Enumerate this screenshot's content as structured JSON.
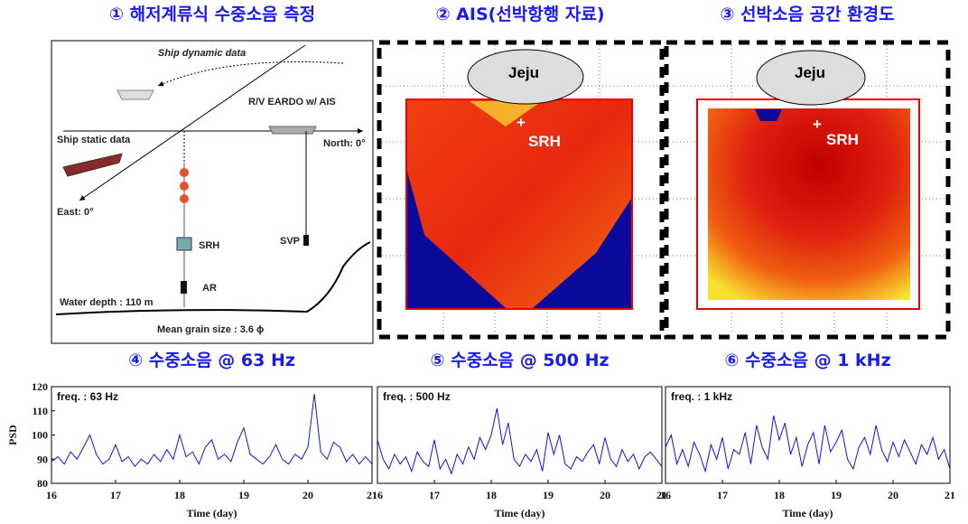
{
  "panels": [
    {
      "title": "① 해저계류식 수중소음 측정"
    },
    {
      "title": "② AIS(선박항행 자료)"
    },
    {
      "title": "③ 선박소음 공간 환경도"
    }
  ],
  "diagram": {
    "ship_dynamic": "Ship dynamic data",
    "vessel": "R/V EARDO w/ AIS",
    "ship_static": "Ship static data",
    "north": "North: 0°",
    "east": "East: 0°",
    "srh": "SRH",
    "svp": "SVP",
    "ar": "AR",
    "depth": "Water depth : 110 m",
    "grain": "Mean grain size : 3.6 ϕ"
  },
  "maps": [
    {
      "island": "Jeju",
      "site": "SRH"
    },
    {
      "island": "Jeju",
      "site": "SRH"
    }
  ],
  "chart_data": [
    {
      "type": "line",
      "title": "④ 수중소음 @ 63 Hz",
      "annotation": "freq. : 63 Hz",
      "x_label": "Time (day)",
      "y_label": "PSD",
      "x": [
        16.0,
        16.1,
        16.2,
        16.3,
        16.4,
        16.5,
        16.6,
        16.7,
        16.8,
        16.9,
        17.0,
        17.1,
        17.2,
        17.3,
        17.4,
        17.5,
        17.6,
        17.7,
        17.8,
        17.9,
        18.0,
        18.1,
        18.2,
        18.3,
        18.4,
        18.5,
        18.6,
        18.7,
        18.8,
        18.9,
        19.0,
        19.1,
        19.2,
        19.3,
        19.4,
        19.5,
        19.6,
        19.7,
        19.8,
        19.9,
        20.0,
        20.1,
        20.2,
        20.3,
        20.4,
        20.5,
        20.6,
        20.7,
        20.8,
        20.9,
        21.0
      ],
      "series": [
        {
          "color": "#1010e0",
          "values": [
            89,
            91,
            88,
            93,
            90,
            95,
            100,
            92,
            88,
            90,
            96,
            89,
            91,
            87,
            90,
            88,
            92,
            89,
            94,
            90,
            100,
            91,
            93,
            88,
            95,
            98,
            90,
            92,
            89,
            97,
            103,
            92,
            90,
            88,
            91,
            96,
            90,
            88,
            92,
            90,
            95,
            117,
            93,
            90,
            97,
            95,
            89,
            92,
            88,
            91,
            88
          ]
        }
      ],
      "xlim": [
        16,
        21
      ],
      "ylim": [
        80,
        120
      ],
      "xticks": [
        16,
        17,
        18,
        19,
        20,
        21
      ],
      "yticks": [
        80,
        90,
        100,
        110,
        120
      ]
    },
    {
      "type": "line",
      "title": "⑤ 수중소음 @ 500 Hz",
      "annotation": "freq. : 500 Hz",
      "x_label": "Time (day)",
      "x": [
        16.0,
        16.1,
        16.2,
        16.3,
        16.4,
        16.5,
        16.6,
        16.7,
        16.8,
        16.9,
        17.0,
        17.1,
        17.2,
        17.3,
        17.4,
        17.5,
        17.6,
        17.7,
        17.8,
        17.9,
        18.0,
        18.1,
        18.2,
        18.3,
        18.4,
        18.5,
        18.6,
        18.7,
        18.8,
        18.9,
        19.0,
        19.1,
        19.2,
        19.3,
        19.4,
        19.5,
        19.6,
        19.7,
        19.8,
        19.9,
        20.0,
        20.1,
        20.2,
        20.3,
        20.4,
        20.5,
        20.6,
        20.7,
        20.8,
        20.9,
        21.0
      ],
      "series": [
        {
          "color": "#1010e0",
          "values": [
            98,
            90,
            86,
            92,
            88,
            91,
            85,
            93,
            89,
            87,
            98,
            86,
            90,
            84,
            92,
            88,
            95,
            90,
            99,
            94,
            100,
            111,
            96,
            105,
            90,
            87,
            92,
            89,
            94,
            85,
            101,
            92,
            100,
            88,
            86,
            91,
            89,
            93,
            96,
            88,
            99,
            90,
            87,
            94,
            89,
            92,
            86,
            91,
            93,
            90,
            87
          ]
        }
      ],
      "xlim": [
        16,
        21
      ],
      "ylim": [
        80,
        120
      ],
      "xticks": [
        16,
        17,
        18,
        19,
        20,
        21
      ]
    },
    {
      "type": "line",
      "title": "⑥ 수중소음 @ 1 kHz",
      "annotation": "freq. : 1 kHz",
      "x_label": "Time (day)",
      "x": [
        16.0,
        16.1,
        16.2,
        16.3,
        16.4,
        16.5,
        16.6,
        16.7,
        16.8,
        16.9,
        17.0,
        17.1,
        17.2,
        17.3,
        17.4,
        17.5,
        17.6,
        17.7,
        17.8,
        17.9,
        18.0,
        18.1,
        18.2,
        18.3,
        18.4,
        18.5,
        18.6,
        18.7,
        18.8,
        18.9,
        19.0,
        19.1,
        19.2,
        19.3,
        19.4,
        19.5,
        19.6,
        19.7,
        19.8,
        19.9,
        20.0,
        20.1,
        20.2,
        20.3,
        20.4,
        20.5,
        20.6,
        20.7,
        20.8,
        20.9,
        21.0
      ],
      "series": [
        {
          "color": "#1010e0",
          "values": [
            95,
            100,
            88,
            94,
            87,
            97,
            92,
            85,
            96,
            90,
            99,
            86,
            94,
            92,
            101,
            88,
            104,
            95,
            90,
            108,
            98,
            105,
            92,
            99,
            87,
            96,
            101,
            88,
            104,
            93,
            97,
            102,
            90,
            86,
            95,
            99,
            92,
            104,
            94,
            89,
            97,
            91,
            98,
            93,
            88,
            96,
            92,
            99,
            90,
            94,
            86
          ]
        }
      ],
      "xlim": [
        16,
        21
      ],
      "ylim": [
        80,
        120
      ],
      "xticks": [
        16,
        17,
        18,
        19,
        20,
        21
      ]
    }
  ]
}
